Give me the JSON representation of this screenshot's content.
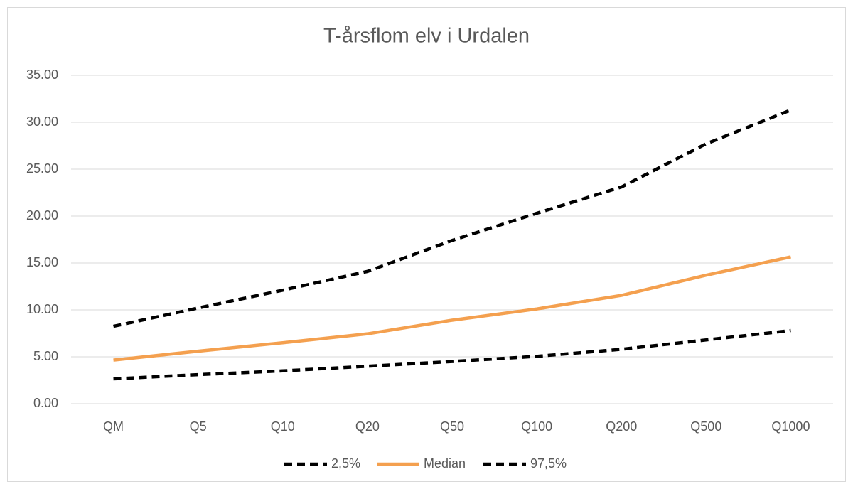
{
  "chart_data": {
    "type": "line",
    "title": "T-årsflom elv i Urdalen",
    "categories": [
      "QM",
      "Q5",
      "Q10",
      "Q20",
      "Q50",
      "Q100",
      "Q200",
      "Q500",
      "Q1000"
    ],
    "series": [
      {
        "name": "2,5%",
        "color": "#000000",
        "dashed": true,
        "values": [
          2.65,
          3.1,
          3.5,
          4.0,
          4.5,
          5.05,
          5.8,
          6.8,
          7.8
        ]
      },
      {
        "name": "Median",
        "color": "#f4a04f",
        "dashed": false,
        "values": [
          4.65,
          5.6,
          6.5,
          7.45,
          8.9,
          10.1,
          11.55,
          13.7,
          15.65
        ]
      },
      {
        "name": "97,5%",
        "color": "#000000",
        "dashed": true,
        "values": [
          8.25,
          10.2,
          12.1,
          14.1,
          17.4,
          20.3,
          23.1,
          27.7,
          31.3
        ]
      }
    ],
    "ylim": [
      0,
      35
    ],
    "yticks": [
      {
        "value": 0,
        "label": "0.00"
      },
      {
        "value": 5,
        "label": "5.00"
      },
      {
        "value": 10,
        "label": "10.00"
      },
      {
        "value": 15,
        "label": "15.00"
      },
      {
        "value": 20,
        "label": "20.00"
      },
      {
        "value": 25,
        "label": "25.00"
      },
      {
        "value": 30,
        "label": "30.00"
      },
      {
        "value": 35,
        "label": "35.00"
      }
    ],
    "grid": true,
    "legend": "bottom"
  }
}
